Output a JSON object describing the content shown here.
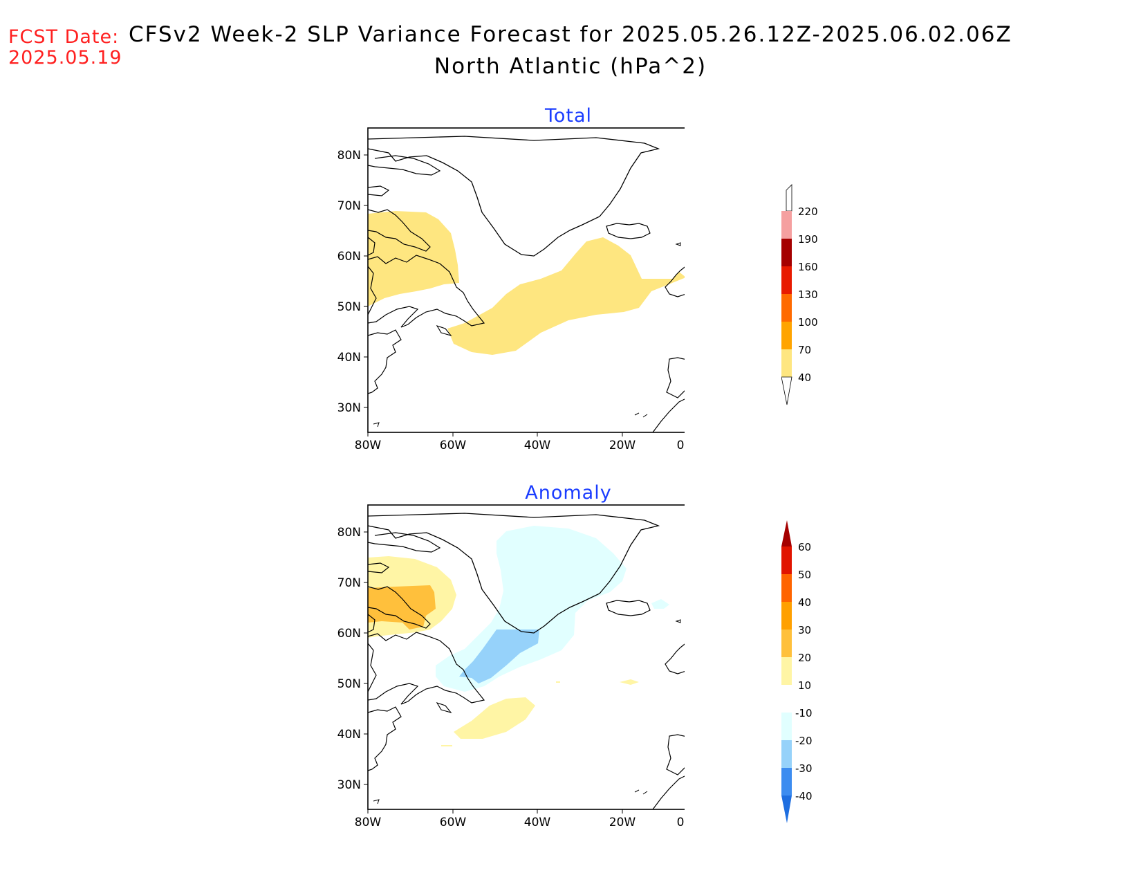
{
  "header": {
    "fcst_label": "FCST Date:",
    "fcst_date": "2025.05.19",
    "title_line1": "CFSv2 Week-2 SLP Variance Forecast for 2025.05.26.12Z-2025.06.02.06Z",
    "title_line2": "North Atlantic (hPa^2)"
  },
  "axes": {
    "lat_labels": [
      "80N",
      "70N",
      "60N",
      "50N",
      "40N",
      "30N"
    ],
    "lon_labels": [
      "80W",
      "60W",
      "40W",
      "20W",
      "0"
    ]
  },
  "panels": {
    "total": {
      "title": "Total",
      "colorbar": {
        "labels": [
          "40",
          "70",
          "100",
          "130",
          "160",
          "190",
          "220"
        ],
        "colors": [
          "#fee680",
          "#ffa400",
          "#ff6a00",
          "#e81a00",
          "#a50000",
          "#f5a0a0",
          "#fde0e0"
        ]
      }
    },
    "anomaly": {
      "title": "Anomaly",
      "colorbar": {
        "labels": [
          "-40",
          "-30",
          "-20",
          "-10",
          "10",
          "20",
          "30",
          "40",
          "50",
          "60"
        ],
        "colors": [
          "#1e6ee0",
          "#3c8cf0",
          "#96d2fa",
          "#e1ffff",
          "#ffffff",
          "#fff5a5",
          "#ffc03c",
          "#ffa000",
          "#ff6400",
          "#e11400",
          "#a50000"
        ]
      }
    }
  },
  "colors": {
    "title_red": "#ff2020",
    "panel_title_blue": "#1a3cff",
    "coastline": "#000000"
  }
}
